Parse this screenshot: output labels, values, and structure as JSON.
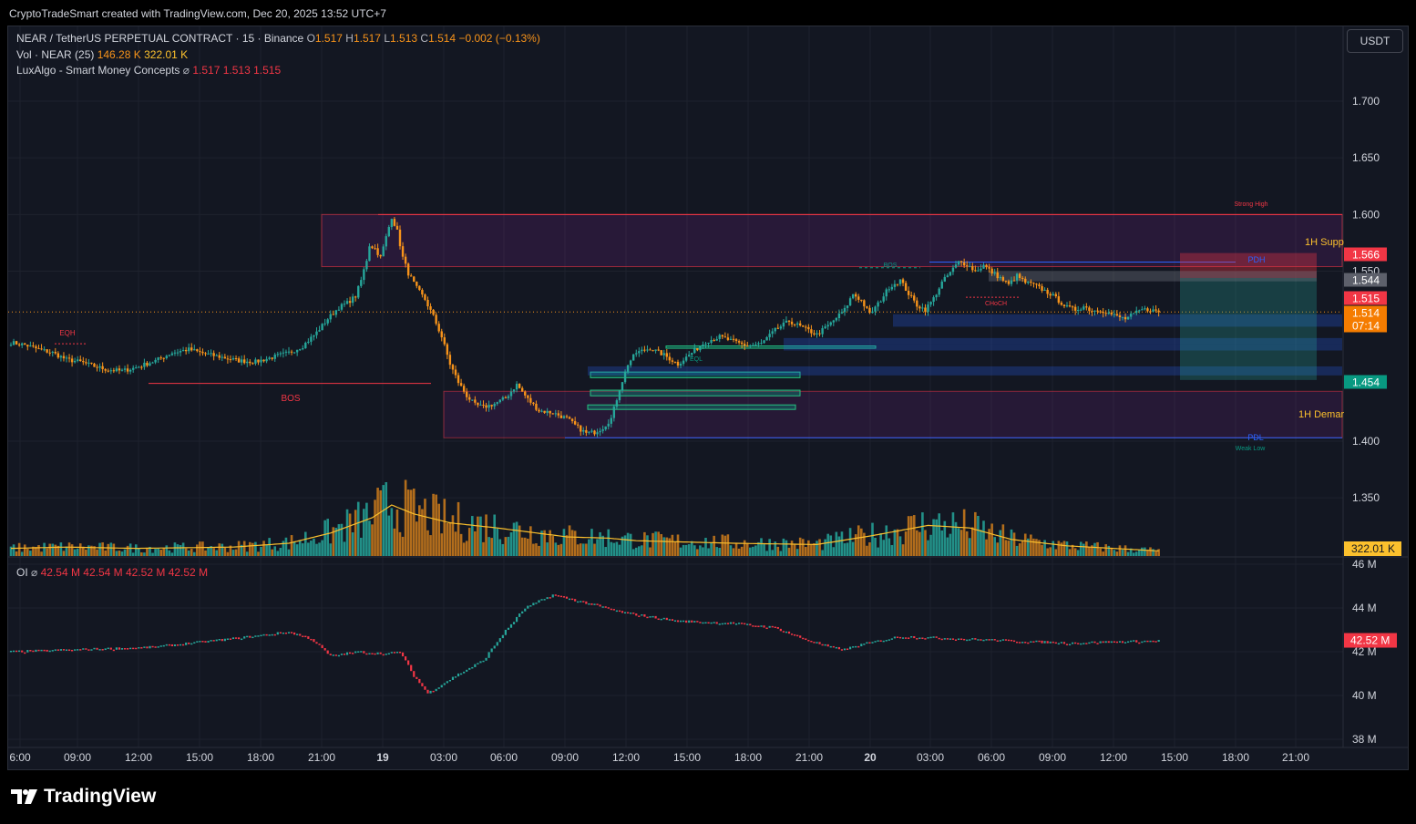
{
  "header": {
    "attribution": "CryptoTradeSmart created with TradingView.com, Dec 20, 2025 13:52 UTC+7"
  },
  "legend": {
    "symbol": "NEAR / TetherUS PERPETUAL CONTRACT · 15 · Binance",
    "o_label": "O",
    "o_value": "1.517",
    "h_label": "H",
    "h_value": "1.517",
    "l_label": "L",
    "l_value": "1.513",
    "c_label": "C",
    "c_value": "1.514",
    "change": "−0.002 (−0.13%)",
    "vol_label": "Vol · NEAR (25)",
    "vol_value1": "146.28 K",
    "vol_value2": "322.01 K",
    "indicator_label": "LuxAlgo - Smart Money Concepts",
    "indicator_symbol": "⌀",
    "ind_value1": "1.517",
    "ind_value2": "1.513",
    "ind_value3": "1.515",
    "oi_label": "OI",
    "oi_symbol": "⌀",
    "oi_value1": "42.54 M",
    "oi_value2": "42.54 M",
    "oi_value3": "42.52 M",
    "oi_value4": "42.52 M"
  },
  "currency_button": "USDT",
  "brand": "TradingView",
  "colors": {
    "background": "#131722",
    "up": "#26a69a",
    "down": "#f7931a",
    "grid": "#1e222d",
    "text": "#d1d4dc"
  },
  "chart_data": {
    "type": "candlestick",
    "price_axis": {
      "ticks": [
        "1.700",
        "1.650",
        "1.600",
        "1.550",
        "1.400",
        "1.350"
      ],
      "tick_values": [
        1.7,
        1.65,
        1.6,
        1.55,
        1.4,
        1.35
      ]
    },
    "time_axis": {
      "labels": [
        "6:00",
        "09:00",
        "12:00",
        "15:00",
        "18:00",
        "21:00",
        "19",
        "03:00",
        "06:00",
        "09:00",
        "12:00",
        "15:00",
        "18:00",
        "21:00",
        "20",
        "03:00",
        "06:00",
        "09:00",
        "12:00",
        "15:00",
        "18:00",
        "21:00"
      ]
    },
    "oi_axis": {
      "ticks": [
        "46 M",
        "44 M",
        "42 M",
        "40 M",
        "38 M"
      ],
      "tick_values": [
        46,
        44,
        42,
        40,
        38
      ]
    },
    "price_badges": [
      {
        "text": "1.566",
        "value": 1.566,
        "color": "#f23645"
      },
      {
        "text": "1.544",
        "value": 1.544,
        "color": "#5d606b"
      },
      {
        "text": "1.515",
        "value": 1.515,
        "color": "#f23645"
      },
      {
        "text": "1.514",
        "value": 1.514,
        "color": "#f57c00"
      },
      {
        "text": "07:14",
        "value": 1.503,
        "color": "#f57c00"
      },
      {
        "text": "1.454",
        "value": 1.454,
        "color": "#089981"
      }
    ],
    "volume_badge": "322.01 K",
    "oi_badge": "42.52 M",
    "oi_badge_value": 42.52,
    "smc_labels": {
      "eqh": "EQH",
      "bos": "BOS",
      "bos2": "BOS",
      "eql": "EQL",
      "choch": "CHoCH",
      "strong_high": "Strong High",
      "weak_low": "Weak Low",
      "pdh": "PDH",
      "pdl": "PDL",
      "supply": "1H Supp",
      "demand": "1H Demar"
    },
    "anchors": [
      [
        0,
        1.487
      ],
      [
        5,
        1.485
      ],
      [
        10,
        1.481
      ],
      [
        15,
        1.478
      ],
      [
        20,
        1.472
      ],
      [
        25,
        1.47
      ],
      [
        30,
        1.466
      ],
      [
        35,
        1.463
      ],
      [
        40,
        1.462
      ],
      [
        45,
        1.465
      ],
      [
        52,
        1.471
      ],
      [
        58,
        1.478
      ],
      [
        64,
        1.481
      ],
      [
        70,
        1.477
      ],
      [
        76,
        1.474
      ],
      [
        82,
        1.471
      ],
      [
        88,
        1.47
      ],
      [
        94,
        1.474
      ],
      [
        100,
        1.478
      ],
      [
        105,
        1.484
      ],
      [
        110,
        1.496
      ],
      [
        114,
        1.508
      ],
      [
        118,
        1.518
      ],
      [
        121,
        1.522
      ],
      [
        124,
        1.528
      ],
      [
        126,
        1.542
      ],
      [
        128,
        1.56
      ],
      [
        129,
        1.573
      ],
      [
        131,
        1.57
      ],
      [
        133,
        1.562
      ],
      [
        135,
        1.58
      ],
      [
        137,
        1.598
      ],
      [
        139,
        1.585
      ],
      [
        141,
        1.562
      ],
      [
        143,
        1.548
      ],
      [
        146,
        1.535
      ],
      [
        149,
        1.525
      ],
      [
        152,
        1.51
      ],
      [
        155,
        1.492
      ],
      [
        158,
        1.468
      ],
      [
        161,
        1.452
      ],
      [
        164,
        1.44
      ],
      [
        167,
        1.432
      ],
      [
        170,
        1.43
      ],
      [
        174,
        1.433
      ],
      [
        178,
        1.438
      ],
      [
        182,
        1.45
      ],
      [
        186,
        1.437
      ],
      [
        190,
        1.427
      ],
      [
        195,
        1.425
      ],
      [
        200,
        1.42
      ],
      [
        204,
        1.412
      ],
      [
        207,
        1.407
      ],
      [
        210,
        1.408
      ],
      [
        213,
        1.412
      ],
      [
        216,
        1.42
      ],
      [
        219,
        1.446
      ],
      [
        222,
        1.468
      ],
      [
        225,
        1.478
      ],
      [
        230,
        1.482
      ],
      [
        235,
        1.476
      ],
      [
        240,
        1.468
      ],
      [
        245,
        1.478
      ],
      [
        250,
        1.488
      ],
      [
        255,
        1.492
      ],
      [
        260,
        1.488
      ],
      [
        265,
        1.484
      ],
      [
        270,
        1.486
      ],
      [
        275,
        1.498
      ],
      [
        280,
        1.506
      ],
      [
        285,
        1.5
      ],
      [
        290,
        1.494
      ],
      [
        295,
        1.504
      ],
      [
        300,
        1.516
      ],
      [
        303,
        1.53
      ],
      [
        306,
        1.524
      ],
      [
        309,
        1.512
      ],
      [
        312,
        1.521
      ],
      [
        316,
        1.536
      ],
      [
        320,
        1.542
      ],
      [
        323,
        1.53
      ],
      [
        326,
        1.52
      ],
      [
        329,
        1.516
      ],
      [
        332,
        1.526
      ],
      [
        335,
        1.54
      ],
      [
        338,
        1.549
      ],
      [
        341,
        1.558
      ],
      [
        344,
        1.556
      ],
      [
        347,
        1.55
      ],
      [
        350,
        1.555
      ],
      [
        353,
        1.549
      ],
      [
        356,
        1.544
      ],
      [
        359,
        1.538
      ],
      [
        362,
        1.546
      ],
      [
        365,
        1.54
      ],
      [
        368,
        1.538
      ],
      [
        371,
        1.534
      ],
      [
        374,
        1.53
      ],
      [
        377,
        1.524
      ],
      [
        380,
        1.518
      ],
      [
        383,
        1.516
      ],
      [
        386,
        1.519
      ],
      [
        389,
        1.515
      ],
      [
        392,
        1.516
      ],
      [
        395,
        1.513
      ],
      [
        398,
        1.51
      ],
      [
        401,
        1.508
      ],
      [
        404,
        1.512
      ],
      [
        407,
        1.516
      ],
      [
        410,
        1.516
      ],
      [
        413,
        1.514
      ]
    ],
    "volume_anchors": [
      [
        0,
        0.06
      ],
      [
        20,
        0.07
      ],
      [
        45,
        0.06
      ],
      [
        80,
        0.07
      ],
      [
        100,
        0.1
      ],
      [
        115,
        0.18
      ],
      [
        130,
        0.3
      ],
      [
        137,
        0.4
      ],
      [
        145,
        0.33
      ],
      [
        158,
        0.26
      ],
      [
        175,
        0.22
      ],
      [
        200,
        0.15
      ],
      [
        215,
        0.14
      ],
      [
        225,
        0.12
      ],
      [
        260,
        0.1
      ],
      [
        290,
        0.09
      ],
      [
        310,
        0.16
      ],
      [
        330,
        0.24
      ],
      [
        345,
        0.22
      ],
      [
        360,
        0.13
      ],
      [
        380,
        0.08
      ],
      [
        413,
        0.04
      ]
    ],
    "oi_anchors": [
      [
        0,
        42.0
      ],
      [
        25,
        42.1
      ],
      [
        50,
        42.2
      ],
      [
        80,
        42.6
      ],
      [
        100,
        42.9
      ],
      [
        108,
        42.6
      ],
      [
        115,
        41.8
      ],
      [
        125,
        42.0
      ],
      [
        135,
        41.9
      ],
      [
        140,
        42.0
      ],
      [
        145,
        40.9
      ],
      [
        150,
        40.1
      ],
      [
        160,
        40.9
      ],
      [
        170,
        41.6
      ],
      [
        177,
        42.8
      ],
      [
        185,
        44.0
      ],
      [
        195,
        44.6
      ],
      [
        205,
        44.3
      ],
      [
        220,
        43.8
      ],
      [
        240,
        43.4
      ],
      [
        260,
        43.3
      ],
      [
        275,
        43.1
      ],
      [
        285,
        42.6
      ],
      [
        295,
        42.2
      ],
      [
        300,
        42.1
      ],
      [
        305,
        42.3
      ],
      [
        320,
        42.7
      ],
      [
        340,
        42.6
      ],
      [
        360,
        42.5
      ],
      [
        380,
        42.4
      ],
      [
        413,
        42.5
      ]
    ],
    "title": "",
    "xlabel": "",
    "ylabel": ""
  }
}
